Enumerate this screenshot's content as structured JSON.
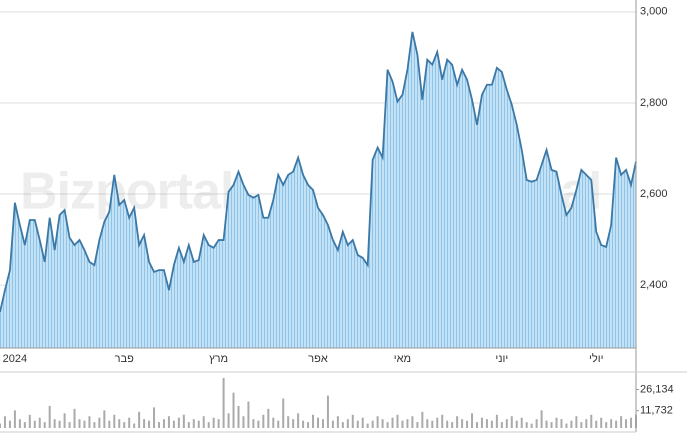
{
  "watermark": "Bizportal",
  "chart_data": [
    {
      "type": "area",
      "color": "#3b78a6",
      "fill": "#b3d9f2",
      "grid": true,
      "categories": [
        null,
        null,
        null,
        "2024",
        null,
        null,
        null,
        null,
        null,
        null,
        null,
        null,
        null,
        null,
        null,
        null,
        null,
        null,
        null,
        null,
        null,
        null,
        null,
        null,
        null,
        "פבר",
        null,
        null,
        null,
        null,
        null,
        null,
        null,
        null,
        null,
        null,
        null,
        null,
        null,
        null,
        null,
        null,
        null,
        null,
        "מרץ",
        null,
        null,
        null,
        null,
        null,
        null,
        null,
        null,
        null,
        null,
        null,
        null,
        null,
        null,
        null,
        null,
        null,
        null,
        null,
        "אפר",
        null,
        null,
        null,
        null,
        null,
        null,
        null,
        null,
        null,
        null,
        null,
        null,
        null,
        null,
        null,
        null,
        "מאי",
        null,
        null,
        null,
        null,
        null,
        null,
        null,
        null,
        null,
        null,
        null,
        null,
        null,
        null,
        null,
        null,
        null,
        null,
        null,
        "יוני",
        null,
        null,
        null,
        null,
        null,
        null,
        null,
        null,
        null,
        null,
        null,
        null,
        null,
        null,
        null,
        null,
        null,
        null,
        "יולי",
        null,
        null,
        null,
        null,
        null,
        null,
        null,
        null
      ],
      "values": [
        2341,
        2389,
        2433,
        2581,
        2532,
        2488,
        2543,
        2543,
        2499,
        2451,
        2548,
        2477,
        2554,
        2565,
        2504,
        2488,
        2499,
        2477,
        2451,
        2444,
        2499,
        2539,
        2561,
        2642,
        2576,
        2587,
        2548,
        2570,
        2488,
        2510,
        2451,
        2429,
        2433,
        2433,
        2389,
        2444,
        2482,
        2451,
        2488,
        2451,
        2455,
        2510,
        2488,
        2482,
        2499,
        2499,
        2605,
        2620,
        2649,
        2620,
        2598,
        2592,
        2598,
        2548,
        2548,
        2587,
        2642,
        2620,
        2642,
        2649,
        2680,
        2642,
        2620,
        2609,
        2570,
        2554,
        2532,
        2499,
        2477,
        2517,
        2488,
        2499,
        2466,
        2460,
        2444,
        2675,
        2702,
        2680,
        2873,
        2847,
        2803,
        2818,
        2873,
        2956,
        2906,
        2807,
        2895,
        2884,
        2912,
        2851,
        2895,
        2884,
        2840,
        2873,
        2851,
        2807,
        2752,
        2818,
        2840,
        2840,
        2877,
        2868,
        2829,
        2796,
        2752,
        2697,
        2631,
        2627,
        2631,
        2664,
        2697,
        2653,
        2649,
        2598,
        2554,
        2570,
        2609,
        2653,
        2642,
        2631,
        2517,
        2488,
        2484,
        2532,
        2680,
        2642,
        2653,
        2620,
        2671
      ],
      "ylim": [
        2262,
        3026
      ],
      "yticks": [
        {
          "value": 2400,
          "label": "2,400"
        },
        {
          "value": 2600,
          "label": "2,600"
        },
        {
          "value": 2800,
          "label": "2,800"
        },
        {
          "value": 3000,
          "label": "3,000"
        }
      ]
    },
    {
      "type": "bar",
      "color": "#aaaaaa",
      "values": [
        3000,
        8000,
        5000,
        12000,
        6000,
        4000,
        9000,
        5000,
        7000,
        4000,
        15000,
        6000,
        5000,
        10000,
        4000,
        13000,
        6000,
        5000,
        8000,
        4000,
        7000,
        12000,
        5000,
        9000,
        6000,
        4000,
        7000,
        3000,
        11000,
        6000,
        5000,
        14000,
        4000,
        6000,
        8000,
        5000,
        7000,
        9000,
        4000,
        6000,
        5000,
        8000,
        4000,
        7000,
        6000,
        34000,
        10000,
        24000,
        15000,
        8000,
        18000,
        6000,
        5000,
        9000,
        13000,
        7000,
        5000,
        20000,
        8000,
        6000,
        10000,
        5000,
        4000,
        9000,
        7000,
        6000,
        22000,
        5000,
        8000,
        4000,
        6000,
        9000,
        5000,
        7000,
        3000,
        5000,
        8000,
        6000,
        4000,
        7000,
        9000,
        5000,
        6000,
        8000,
        4000,
        11000,
        6000,
        5000,
        7000,
        9000,
        5000,
        4000,
        8000,
        6000,
        5000,
        10000,
        4000,
        7000,
        6000,
        5000,
        9000,
        4000,
        6000,
        8000,
        5000,
        7000,
        4000,
        3000,
        6000,
        12000,
        5000,
        4000,
        7000,
        6000,
        3000,
        5000,
        8000,
        4000,
        6000,
        9000,
        5000,
        7000,
        4000,
        6000,
        5000,
        8000,
        6000,
        7000,
        9000
      ],
      "ylim": [
        0,
        36000
      ],
      "yticks": [
        {
          "value": 11732,
          "label": "11,732"
        },
        {
          "value": 26134,
          "label": "26,134"
        }
      ]
    }
  ]
}
